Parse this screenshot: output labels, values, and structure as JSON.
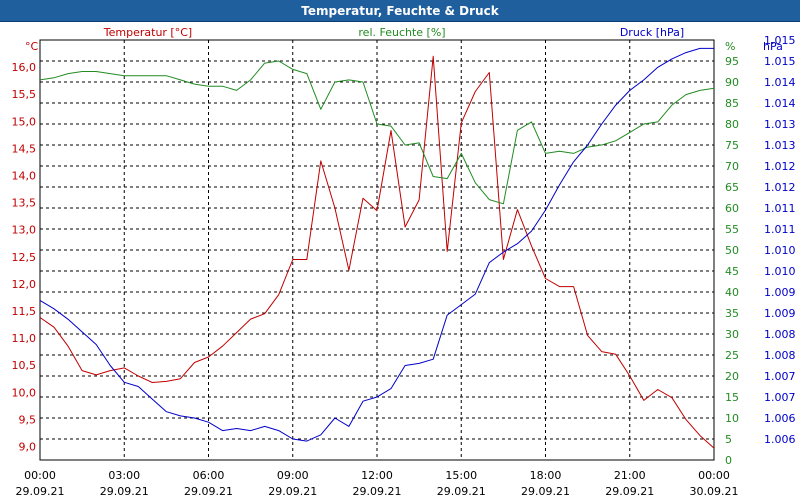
{
  "window": {
    "title": "Temperatur, Feuchte & Druck"
  },
  "colors": {
    "temperature": "#c00000",
    "humidity": "#228b22",
    "pressure": "#0000c8",
    "grid": "#000000",
    "titlebar": "#1f5f9e"
  },
  "chart_data": {
    "type": "line",
    "title": "Temperatur, Feuchte & Druck",
    "x_ticks": [
      {
        "time": "00:00",
        "date": "29.09.21"
      },
      {
        "time": "03:00",
        "date": "29.09.21"
      },
      {
        "time": "06:00",
        "date": "29.09.21"
      },
      {
        "time": "09:00",
        "date": "29.09.21"
      },
      {
        "time": "12:00",
        "date": "29.09.21"
      },
      {
        "time": "15:00",
        "date": "29.09.21"
      },
      {
        "time": "18:00",
        "date": "29.09.21"
      },
      {
        "time": "21:00",
        "date": "29.09.21"
      },
      {
        "time": "00:00",
        "date": "30.09.21"
      }
    ],
    "xlim": [
      0,
      24
    ],
    "axes": {
      "temperature": {
        "label": "Temperatur [°C]",
        "unit": "°C",
        "ylim": [
          8.75,
          16.5
        ],
        "ticks": [
          "9,0",
          "9,5",
          "10,0",
          "10,5",
          "11,0",
          "11,5",
          "12,0",
          "12,5",
          "13,0",
          "13,5",
          "14,0",
          "14,5",
          "15,0",
          "15,5",
          "16,0"
        ]
      },
      "humidity": {
        "label": "rel. Feuchte [%]",
        "unit": "%",
        "ylim": [
          0,
          100
        ],
        "ticks": [
          "0",
          "5",
          "10",
          "15",
          "20",
          "25",
          "30",
          "35",
          "40",
          "45",
          "50",
          "55",
          "60",
          "65",
          "70",
          "75",
          "80",
          "85",
          "90",
          "95"
        ]
      },
      "pressure": {
        "label": "Druck [hPa]",
        "unit": "hPa",
        "ylim": [
          1005.5,
          1015.5
        ],
        "ticks": [
          "1.006",
          "1.006",
          "1.007",
          "1.007",
          "1.008",
          "1.008",
          "1.009",
          "1.009",
          "1.010",
          "1.010",
          "1.011",
          "1.011",
          "1.012",
          "1.012",
          "1.013",
          "1.013",
          "1.014",
          "1.014",
          "1.015",
          "1.015"
        ]
      }
    },
    "series": [
      {
        "name": "Temperatur [°C]",
        "axis": "temperature",
        "x": [
          0,
          0.5,
          1,
          1.5,
          2,
          2.5,
          3,
          3.5,
          4,
          4.5,
          5,
          5.5,
          6,
          6.5,
          7,
          7.5,
          8,
          8.5,
          9,
          9.5,
          10,
          10.5,
          11,
          11.5,
          12,
          12.5,
          13,
          13.5,
          14,
          14.5,
          15,
          15.5,
          16,
          16.5,
          17,
          17.5,
          18,
          18.5,
          19,
          19.5,
          20,
          20.5,
          21,
          21.5,
          22,
          22.5,
          23,
          23.5,
          24
        ],
        "values": [
          11.38,
          11.2,
          10.85,
          10.4,
          10.32,
          10.4,
          10.45,
          10.3,
          10.18,
          10.2,
          10.25,
          10.55,
          10.65,
          10.85,
          11.1,
          11.35,
          11.45,
          11.8,
          12.45,
          12.45,
          14.27,
          13.4,
          12.25,
          13.58,
          13.35,
          14.83,
          13.05,
          13.55,
          16.2,
          12.6,
          14.97,
          15.55,
          15.9,
          12.45,
          13.37,
          12.7,
          12.1,
          11.95,
          11.95,
          11.05,
          10.75,
          10.7,
          10.3,
          9.85,
          10.05,
          9.9,
          9.5,
          9.2,
          8.97
        ]
      },
      {
        "name": "rel. Feuchte [%]",
        "axis": "humidity",
        "x": [
          0,
          0.5,
          1,
          1.5,
          2,
          2.5,
          3,
          3.5,
          4,
          4.5,
          5,
          5.5,
          6,
          6.5,
          7,
          7.5,
          8,
          8.5,
          9,
          9.5,
          10,
          10.5,
          11,
          11.5,
          12,
          12.5,
          13,
          13.5,
          14,
          14.5,
          15,
          15.5,
          16,
          16.5,
          17,
          17.5,
          18,
          18.5,
          19,
          19.5,
          20,
          20.5,
          21,
          21.5,
          22,
          22.5,
          23,
          23.5,
          24
        ],
        "values": [
          90.5,
          91,
          92,
          92.5,
          92.5,
          92,
          91.5,
          91.5,
          91.5,
          91.5,
          90.5,
          89.5,
          89,
          89,
          88,
          90.5,
          94.5,
          95,
          93,
          92,
          83.5,
          90,
          90.5,
          90,
          80,
          79.5,
          75,
          75.5,
          67.5,
          67,
          73,
          66,
          62,
          61,
          78.5,
          80.5,
          73,
          73.5,
          73,
          74.5,
          75,
          76,
          78,
          80,
          80.5,
          84.5,
          87,
          88,
          88.5
        ]
      },
      {
        "name": "Druck [hPa]",
        "axis": "pressure",
        "x": [
          0,
          0.5,
          1,
          1.5,
          2,
          2.5,
          3,
          3.5,
          4,
          4.5,
          5,
          5.5,
          6,
          6.5,
          7,
          7.5,
          8,
          8.5,
          9,
          9.5,
          10,
          10.5,
          11,
          11.5,
          12,
          12.5,
          13,
          13.5,
          14,
          14.5,
          15,
          15.5,
          16,
          16.5,
          17,
          17.5,
          18,
          18.5,
          19,
          19.5,
          20,
          20.5,
          21,
          21.5,
          22,
          22.5,
          23,
          23.5,
          24
        ],
        "values": [
          1009.3,
          1009.1,
          1008.85,
          1008.55,
          1008.25,
          1007.75,
          1007.35,
          1007.25,
          1006.95,
          1006.65,
          1006.55,
          1006.5,
          1006.4,
          1006.2,
          1006.25,
          1006.2,
          1006.3,
          1006.2,
          1006.0,
          1005.95,
          1006.1,
          1006.5,
          1006.3,
          1006.9,
          1007.0,
          1007.2,
          1007.75,
          1007.8,
          1007.9,
          1008.95,
          1009.2,
          1009.45,
          1010.2,
          1010.45,
          1010.65,
          1010.95,
          1011.45,
          1012.05,
          1012.6,
          1013.0,
          1013.5,
          1013.95,
          1014.3,
          1014.55,
          1014.85,
          1015.05,
          1015.2,
          1015.3,
          1015.3
        ]
      }
    ]
  }
}
